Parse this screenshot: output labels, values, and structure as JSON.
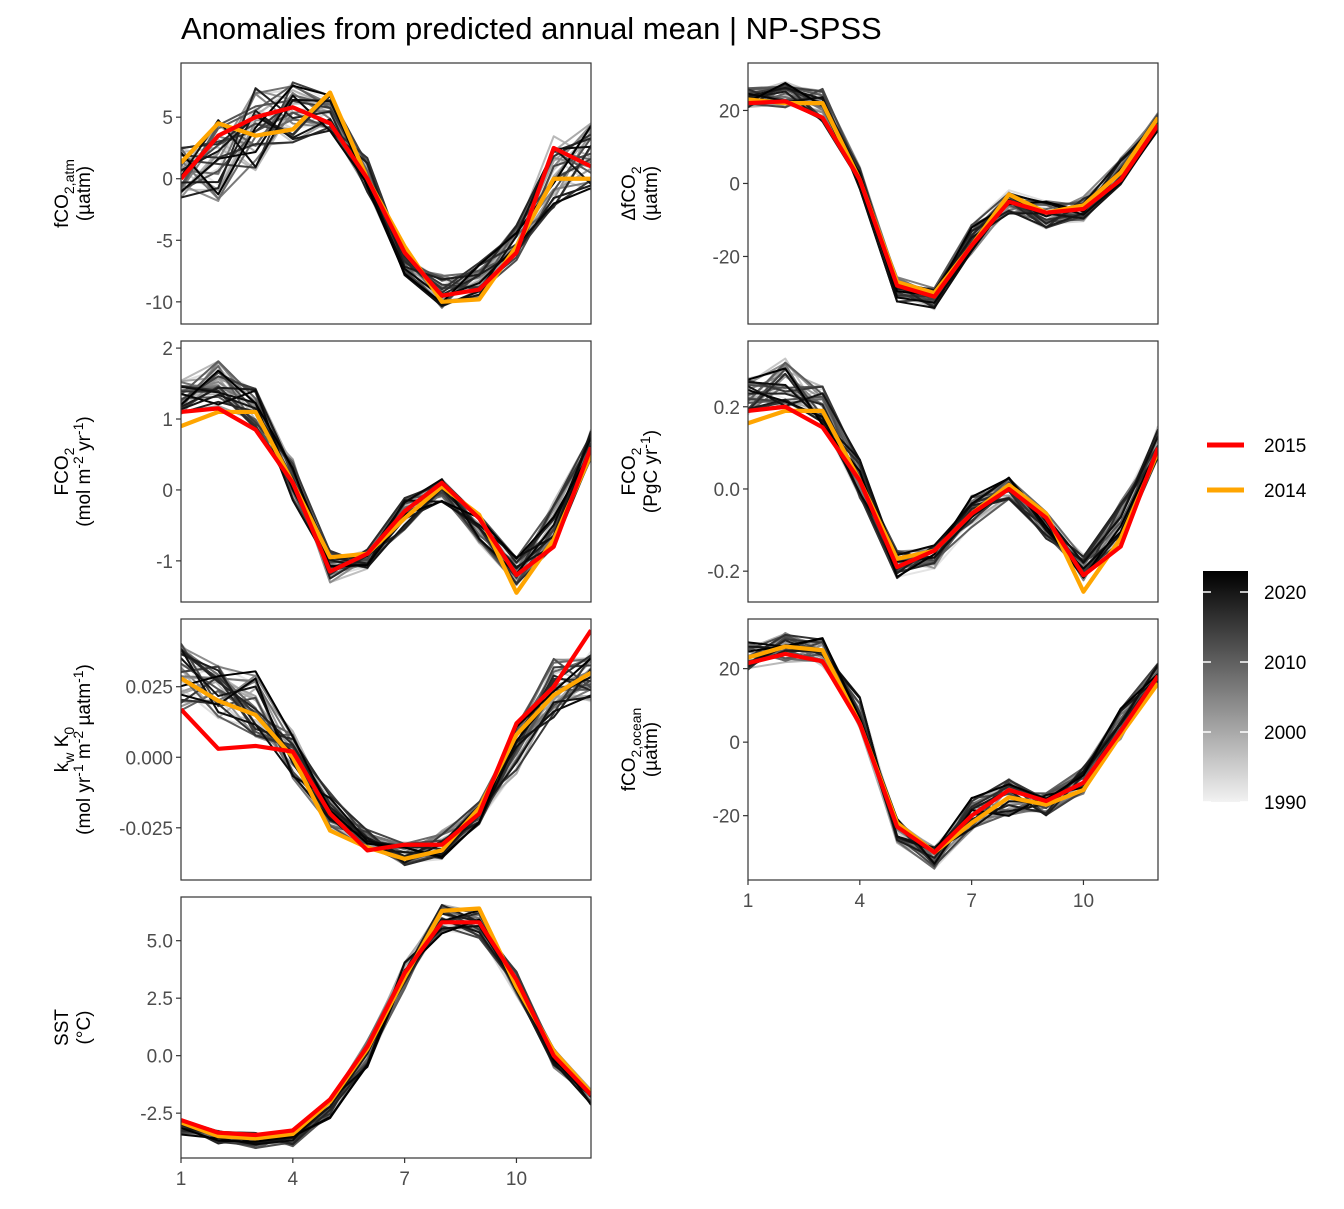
{
  "title": "Anomalies from predicted annual mean | NP-SPSS",
  "legend": {
    "highlight": [
      {
        "name": "2015",
        "color": "#ff0000"
      },
      {
        "name": "2014",
        "color": "#ffa500"
      }
    ],
    "colorbar": {
      "ticks": [
        "2020",
        "2010",
        "2000",
        "1990"
      ],
      "range": [
        1990,
        2023
      ],
      "low_color": "#f2f2f2",
      "high_color": "#000000"
    }
  },
  "chart_data": [
    {
      "type": "line",
      "ylabel_lines": [
        [
          "fCO",
          {
            "sub": "2,atm"
          }
        ],
        [
          "(µatm)"
        ]
      ],
      "x_ticks": [
        1,
        4,
        7,
        10
      ],
      "xlim": [
        1,
        12
      ],
      "ylim": [
        -11.8,
        9.4
      ],
      "y_ticks": [
        5,
        0,
        -5,
        -10
      ],
      "y_tick_labels": [
        "5",
        "0",
        "-5",
        "-10"
      ],
      "show_x_axis": false,
      "background_envelope": {
        "upper": [
          3,
          6,
          8,
          8.3,
          7.8,
          2,
          -6,
          -7.5,
          -6.5,
          -3.5,
          4,
          5
        ],
        "lower": [
          -2.5,
          -2.5,
          0,
          2.5,
          3.5,
          -1.5,
          -8,
          -11,
          -10,
          -7,
          -3,
          -1.5
        ]
      },
      "series": [
        {
          "name": "2015",
          "values": [
            0,
            3.5,
            5,
            5.8,
            4.5,
            0,
            -6,
            -9.5,
            -9,
            -6,
            2.5,
            1
          ]
        },
        {
          "name": "2014",
          "values": [
            1.3,
            4.5,
            3.5,
            4,
            7,
            0,
            -5.5,
            -10,
            -9.8,
            -5.5,
            0,
            0
          ]
        }
      ]
    },
    {
      "type": "line",
      "ylabel_lines": [
        [
          "ΔfCO",
          {
            "sub": "2"
          }
        ],
        [
          "(µatm)"
        ]
      ],
      "x_ticks": [
        1,
        4,
        7,
        10
      ],
      "xlim": [
        1,
        12
      ],
      "ylim": [
        -38.5,
        33
      ],
      "y_ticks": [
        20,
        0,
        -20
      ],
      "y_tick_labels": [
        "20",
        "0",
        "-20"
      ],
      "show_x_axis": false,
      "background_envelope": {
        "upper": [
          27,
          29,
          27,
          5,
          -25,
          -28,
          -10,
          -1,
          -4,
          -3,
          8,
          20
        ],
        "lower": [
          20,
          20,
          16,
          -2,
          -33,
          -35,
          -20,
          -9,
          -13,
          -11,
          -1,
          14
        ]
      },
      "series": [
        {
          "name": "2015",
          "values": [
            22,
            22.5,
            18,
            1,
            -28,
            -31,
            -17,
            -5,
            -8,
            -7,
            1,
            16
          ]
        },
        {
          "name": "2014",
          "values": [
            23,
            22,
            22,
            1,
            -27,
            -30,
            -17,
            -3,
            -8,
            -6,
            3,
            18
          ]
        }
      ]
    },
    {
      "type": "line",
      "ylabel_lines": [
        [
          "FCO",
          {
            "sub": "2"
          }
        ],
        [
          "(mol m",
          {
            "sup": "-2"
          },
          " yr",
          {
            "sup": "-1"
          },
          ")"
        ]
      ],
      "x_ticks": [
        1,
        4,
        7,
        10
      ],
      "xlim": [
        1,
        12
      ],
      "ylim": [
        -1.58,
        2.1
      ],
      "y_ticks": [
        2,
        1,
        0,
        -1
      ],
      "y_tick_labels": [
        "2",
        "1",
        "0",
        "-1"
      ],
      "show_x_axis": false,
      "background_envelope": {
        "upper": [
          1.6,
          1.9,
          1.5,
          0.5,
          -0.8,
          -0.8,
          -0.05,
          0.2,
          -0.3,
          -0.9,
          -0.1,
          0.9
        ],
        "lower": [
          1.0,
          1.1,
          0.8,
          -0.2,
          -1.35,
          -1.15,
          -0.6,
          -0.2,
          -0.8,
          -1.4,
          -0.9,
          0.4
        ]
      },
      "series": [
        {
          "name": "2015",
          "values": [
            1.1,
            1.15,
            0.85,
            0.1,
            -1.15,
            -0.9,
            -0.3,
            0.1,
            -0.4,
            -1.2,
            -0.8,
            0.6
          ]
        },
        {
          "name": "2014",
          "values": [
            0.9,
            1.1,
            1.1,
            0.1,
            -0.95,
            -0.9,
            -0.4,
            0.05,
            -0.35,
            -1.45,
            -0.7,
            0.5
          ]
        }
      ]
    },
    {
      "type": "line",
      "ylabel_lines": [
        [
          "FCO",
          {
            "sub": "2"
          }
        ],
        [
          "(PgC yr",
          {
            "sup": "-1"
          },
          ")"
        ]
      ],
      "x_ticks": [
        1,
        4,
        7,
        10
      ],
      "xlim": [
        1,
        12
      ],
      "ylim": [
        -0.275,
        0.36
      ],
      "y_ticks": [
        0.2,
        0.0,
        -0.2
      ],
      "y_tick_labels": [
        "0.2",
        "0.0",
        "-0.2"
      ],
      "show_x_axis": false,
      "background_envelope": {
        "upper": [
          0.28,
          0.33,
          0.26,
          0.08,
          -0.14,
          -0.13,
          -0.01,
          0.035,
          -0.05,
          -0.15,
          -0.02,
          0.16
        ],
        "lower": [
          0.17,
          0.19,
          0.14,
          -0.03,
          -0.235,
          -0.2,
          -0.1,
          -0.03,
          -0.13,
          -0.23,
          -0.15,
          0.07
        ]
      },
      "series": [
        {
          "name": "2015",
          "values": [
            0.19,
            0.2,
            0.15,
            0.02,
            -0.19,
            -0.15,
            -0.06,
            0.0,
            -0.07,
            -0.21,
            -0.14,
            0.1
          ]
        },
        {
          "name": "2014",
          "values": [
            0.16,
            0.19,
            0.19,
            0.02,
            -0.17,
            -0.15,
            -0.06,
            0.01,
            -0.06,
            -0.25,
            -0.12,
            0.09
          ]
        }
      ]
    },
    {
      "type": "line",
      "ylabel_lines": [
        [
          "k",
          {
            "sub": "w"
          },
          " K",
          {
            "sub": "0"
          }
        ],
        [
          "(mol yr",
          {
            "sup": "-1"
          },
          " m",
          {
            "sup": "-2"
          },
          " µatm",
          {
            "sup": "-1"
          },
          ")"
        ]
      ],
      "x_ticks": [
        1,
        4,
        7,
        10
      ],
      "xlim": [
        1,
        12
      ],
      "ylim": [
        -0.0435,
        0.049
      ],
      "y_ticks": [
        0.025,
        0.0,
        -0.025
      ],
      "y_tick_labels": [
        "0.025",
        "0.000",
        "-0.025"
      ],
      "show_x_axis": false,
      "background_envelope": {
        "upper": [
          0.043,
          0.035,
          0.033,
          0.012,
          -0.01,
          -0.025,
          -0.029,
          -0.025,
          -0.015,
          0.015,
          0.037,
          0.04
        ],
        "lower": [
          0.014,
          0.012,
          0.005,
          -0.01,
          -0.027,
          -0.034,
          -0.039,
          -0.037,
          -0.025,
          -0.008,
          0.012,
          0.018
        ]
      },
      "series": [
        {
          "name": "2015",
          "values": [
            0.017,
            0.003,
            0.004,
            0.002,
            -0.02,
            -0.033,
            -0.031,
            -0.031,
            -0.02,
            0.012,
            0.025,
            0.045
          ]
        },
        {
          "name": "2014",
          "values": [
            0.028,
            0.02,
            0.015,
            0.0,
            -0.026,
            -0.032,
            -0.036,
            -0.033,
            -0.018,
            0.008,
            0.022,
            0.03
          ]
        }
      ]
    },
    {
      "type": "line",
      "ylabel_lines": [
        [
          "fCO",
          {
            "sub": "2,ocean"
          }
        ],
        [
          "(µatm)"
        ]
      ],
      "x_ticks": [
        1,
        4,
        7,
        10
      ],
      "x_tick_labels": [
        "1",
        "4",
        "7",
        "10"
      ],
      "xlim": [
        1,
        12
      ],
      "ylim": [
        -37.5,
        33.5
      ],
      "y_ticks": [
        20,
        0,
        -20
      ],
      "y_tick_labels": [
        "20",
        "0",
        "-20"
      ],
      "show_x_axis": true,
      "background_envelope": {
        "upper": [
          28,
          31,
          29,
          13,
          -20,
          -28,
          -14,
          -9,
          -13,
          -6,
          10,
          22
        ],
        "lower": [
          19,
          21,
          20,
          3,
          -28,
          -35,
          -25,
          -21,
          -21,
          -15,
          0,
          15
        ]
      },
      "series": [
        {
          "name": "2015",
          "values": [
            21.5,
            24,
            22,
            5,
            -23,
            -30,
            -20,
            -13,
            -16,
            -11,
            3,
            18
          ]
        },
        {
          "name": "2014",
          "values": [
            23,
            26,
            25,
            5,
            -22,
            -30,
            -22,
            -15,
            -17,
            -13,
            2,
            16
          ]
        }
      ]
    },
    {
      "type": "line",
      "ylabel_lines": [
        [
          "SST"
        ],
        [
          "(°C)"
        ]
      ],
      "x_ticks": [
        1,
        4,
        7,
        10
      ],
      "x_tick_labels": [
        "1",
        "4",
        "7",
        "10"
      ],
      "xlim": [
        1,
        12
      ],
      "ylim": [
        -4.45,
        6.9
      ],
      "y_ticks": [
        5.0,
        2.5,
        0.0,
        -2.5
      ],
      "y_tick_labels": [
        "5.0",
        "2.5",
        "0.0",
        "-2.5"
      ],
      "show_x_axis": true,
      "background_envelope": {
        "upper": [
          -2.7,
          -3.2,
          -3.3,
          -3.2,
          -1.8,
          0.8,
          4.2,
          6.7,
          6.5,
          3.8,
          0.4,
          -1.4
        ],
        "lower": [
          -3.5,
          -3.9,
          -4.1,
          -4.0,
          -2.8,
          -0.6,
          2.6,
          5.2,
          5.0,
          2.4,
          -0.6,
          -2.2
        ]
      },
      "series": [
        {
          "name": "2015",
          "values": [
            -2.8,
            -3.35,
            -3.45,
            -3.25,
            -1.9,
            0.4,
            3.6,
            5.8,
            5.8,
            3.3,
            0.0,
            -1.7
          ]
        },
        {
          "name": "2014",
          "values": [
            -2.9,
            -3.5,
            -3.6,
            -3.4,
            -2.0,
            0.3,
            3.4,
            6.3,
            6.4,
            3.0,
            0.2,
            -1.6
          ]
        }
      ]
    }
  ]
}
